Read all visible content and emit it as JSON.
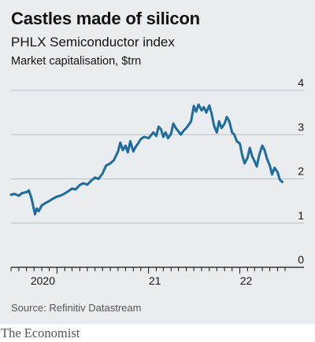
{
  "header": {
    "title": "Castles made of silicon",
    "subtitle": "PHLX Semiconductor index",
    "units": "Market capitalisation, $trn"
  },
  "source": "Source: Refinitiv Datastream",
  "brand": "The Economist",
  "colors": {
    "accent": "#e3120b",
    "line": "#1f6b9e",
    "background": "#e9edf0",
    "grid": "#b7c1c9"
  },
  "chart_data": {
    "type": "line",
    "title": "Castles made of silicon",
    "subtitle": "PHLX Semiconductor index",
    "ylabel": "Market capitalisation, $trn",
    "ylim": [
      0,
      4
    ],
    "yticks": [
      {
        "value": 0,
        "label": "0"
      },
      {
        "value": 1,
        "label": "1"
      },
      {
        "value": 2,
        "label": "2"
      },
      {
        "value": 3,
        "label": "3"
      },
      {
        "value": 4,
        "label": "4"
      }
    ],
    "xlim": [
      "2019-07-01",
      "2022-07-01"
    ],
    "xticks": [
      {
        "date": "2020-01-01",
        "label": "2020"
      },
      {
        "date": "2021-01-01",
        "label": "21"
      },
      {
        "date": "2022-01-01",
        "label": "22"
      }
    ],
    "grid": true,
    "series": [
      {
        "values": [
          [
            "2019-07-01",
            1.64
          ],
          [
            "2019-07-15",
            1.66
          ],
          [
            "2019-08-01",
            1.62
          ],
          [
            "2019-08-15",
            1.68
          ],
          [
            "2019-09-01",
            1.7
          ],
          [
            "2019-09-10",
            1.74
          ],
          [
            "2019-09-20",
            1.58
          ],
          [
            "2019-10-01",
            1.3
          ],
          [
            "2019-10-05",
            1.2
          ],
          [
            "2019-10-12",
            1.33
          ],
          [
            "2019-10-20",
            1.27
          ],
          [
            "2019-11-01",
            1.4
          ],
          [
            "2019-11-15",
            1.45
          ],
          [
            "2019-12-01",
            1.5
          ],
          [
            "2019-12-15",
            1.55
          ],
          [
            "2020-01-01",
            1.6
          ],
          [
            "2020-01-15",
            1.62
          ],
          [
            "2020-02-01",
            1.67
          ],
          [
            "2020-02-15",
            1.72
          ],
          [
            "2020-03-01",
            1.78
          ],
          [
            "2020-03-15",
            1.76
          ],
          [
            "2020-04-01",
            1.86
          ],
          [
            "2020-04-15",
            1.9
          ],
          [
            "2020-05-01",
            1.87
          ],
          [
            "2020-05-15",
            1.95
          ],
          [
            "2020-06-01",
            2.03
          ],
          [
            "2020-06-15",
            2.0
          ],
          [
            "2020-07-01",
            2.12
          ],
          [
            "2020-07-15",
            2.3
          ],
          [
            "2020-08-01",
            2.35
          ],
          [
            "2020-08-15",
            2.42
          ],
          [
            "2020-09-01",
            2.62
          ],
          [
            "2020-09-10",
            2.82
          ],
          [
            "2020-09-20",
            2.65
          ],
          [
            "2020-10-01",
            2.75
          ],
          [
            "2020-10-10",
            2.6
          ],
          [
            "2020-10-20",
            2.85
          ],
          [
            "2020-11-01",
            2.62
          ],
          [
            "2020-11-10",
            2.72
          ],
          [
            "2020-11-20",
            2.8
          ],
          [
            "2020-12-01",
            2.9
          ],
          [
            "2020-12-15",
            2.95
          ],
          [
            "2021-01-01",
            2.92
          ],
          [
            "2021-01-10",
            2.98
          ],
          [
            "2021-01-20",
            3.05
          ],
          [
            "2021-02-01",
            2.97
          ],
          [
            "2021-02-10",
            3.18
          ],
          [
            "2021-02-20",
            3.12
          ],
          [
            "2021-03-01",
            2.95
          ],
          [
            "2021-03-10",
            3.05
          ],
          [
            "2021-03-20",
            2.92
          ],
          [
            "2021-04-01",
            3.02
          ],
          [
            "2021-04-10",
            3.25
          ],
          [
            "2021-04-20",
            3.15
          ],
          [
            "2021-05-01",
            3.07
          ],
          [
            "2021-05-10",
            3.0
          ],
          [
            "2021-05-20",
            3.08
          ],
          [
            "2021-06-01",
            3.15
          ],
          [
            "2021-06-10",
            3.22
          ],
          [
            "2021-06-20",
            3.3
          ],
          [
            "2021-07-01",
            3.65
          ],
          [
            "2021-07-10",
            3.52
          ],
          [
            "2021-07-20",
            3.68
          ],
          [
            "2021-08-01",
            3.55
          ],
          [
            "2021-08-10",
            3.62
          ],
          [
            "2021-08-20",
            3.5
          ],
          [
            "2021-09-01",
            3.66
          ],
          [
            "2021-09-10",
            3.48
          ],
          [
            "2021-09-20",
            3.2
          ],
          [
            "2021-10-01",
            3.05
          ],
          [
            "2021-10-10",
            3.3
          ],
          [
            "2021-10-20",
            3.15
          ],
          [
            "2021-11-01",
            3.25
          ],
          [
            "2021-11-10",
            3.4
          ],
          [
            "2021-11-20",
            3.3
          ],
          [
            "2021-12-01",
            3.05
          ],
          [
            "2021-12-10",
            3.0
          ],
          [
            "2021-12-20",
            2.85
          ],
          [
            "2022-01-01",
            2.8
          ],
          [
            "2022-01-10",
            2.55
          ],
          [
            "2022-01-20",
            2.35
          ],
          [
            "2022-02-01",
            2.48
          ],
          [
            "2022-02-10",
            2.7
          ],
          [
            "2022-02-20",
            2.5
          ],
          [
            "2022-03-01",
            2.4
          ],
          [
            "2022-03-10",
            2.28
          ],
          [
            "2022-03-20",
            2.55
          ],
          [
            "2022-04-01",
            2.75
          ],
          [
            "2022-04-10",
            2.65
          ],
          [
            "2022-04-20",
            2.45
          ],
          [
            "2022-05-01",
            2.3
          ],
          [
            "2022-05-10",
            2.1
          ],
          [
            "2022-05-20",
            2.25
          ],
          [
            "2022-06-01",
            2.15
          ],
          [
            "2022-06-10",
            1.98
          ],
          [
            "2022-06-20",
            1.93
          ]
        ]
      }
    ]
  }
}
